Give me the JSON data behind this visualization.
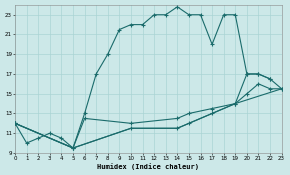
{
  "xlabel": "Humidex (Indice chaleur)",
  "bg_color": "#cce8e8",
  "line_color": "#1a6b6b",
  "grid_color": "#aad4d4",
  "xlim": [
    0,
    23
  ],
  "ylim": [
    9,
    24
  ],
  "xticks": [
    0,
    1,
    2,
    3,
    4,
    5,
    6,
    7,
    8,
    9,
    10,
    11,
    12,
    13,
    14,
    15,
    16,
    17,
    18,
    19,
    20,
    21,
    22,
    23
  ],
  "yticks": [
    9,
    11,
    13,
    15,
    17,
    19,
    21,
    23
  ],
  "curve_main_x": [
    0,
    1,
    2,
    3,
    4,
    5,
    6,
    7,
    8,
    9,
    10,
    11,
    12,
    13,
    14,
    15,
    16,
    17,
    18,
    19,
    20,
    21,
    22
  ],
  "curve_main_y": [
    12,
    10,
    10.5,
    11,
    10.5,
    9.5,
    13,
    17,
    19,
    21.5,
    22,
    22,
    23,
    23,
    23.8,
    23,
    23,
    20,
    23,
    23,
    17,
    17,
    16.5
  ],
  "curve2_x": [
    0,
    5,
    6,
    10,
    14,
    15,
    17,
    19,
    20,
    21,
    22,
    23
  ],
  "curve2_y": [
    12,
    9.5,
    12.5,
    12,
    12.5,
    13,
    13.5,
    14,
    17,
    17,
    16.5,
    15.5
  ],
  "curve3_x": [
    0,
    5,
    10,
    14,
    15,
    17,
    19,
    20,
    21,
    22,
    23
  ],
  "curve3_y": [
    12,
    9.5,
    11.5,
    11.5,
    12,
    13,
    14,
    15,
    16,
    15.5,
    15.5
  ],
  "curve4_x": [
    0,
    5,
    10,
    14,
    19,
    23
  ],
  "curve4_y": [
    12,
    9.5,
    11.5,
    11.5,
    14,
    15.5
  ]
}
